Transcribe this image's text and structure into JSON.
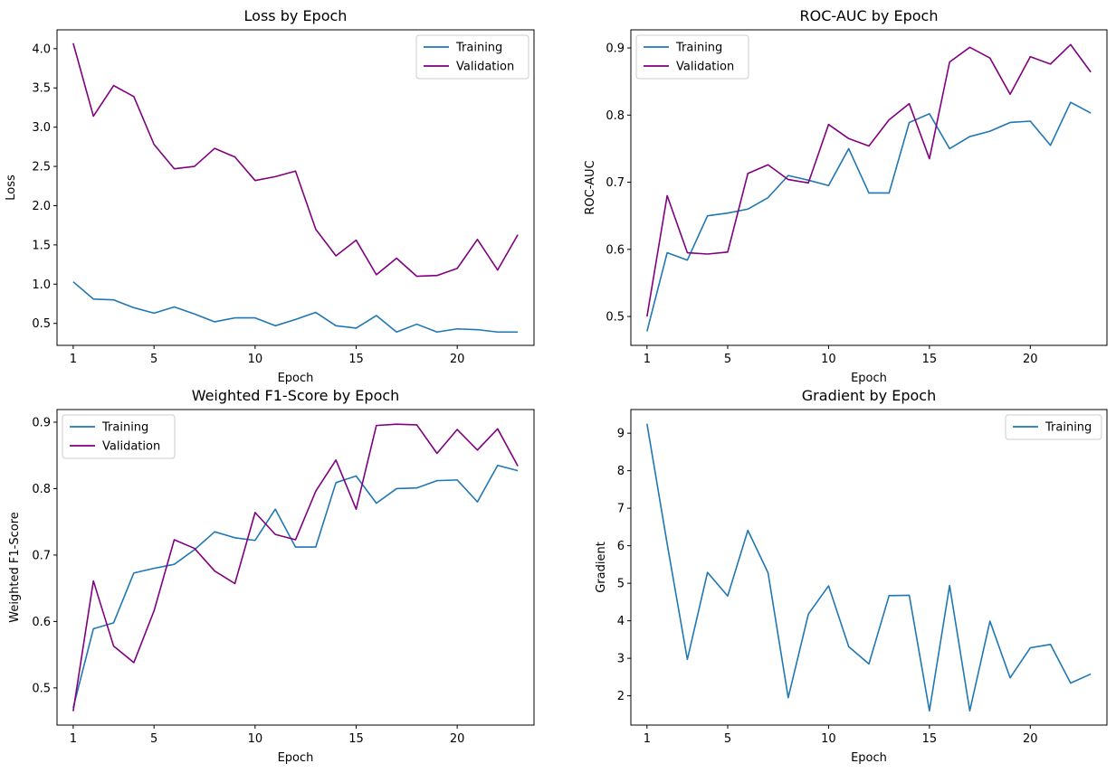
{
  "colors": {
    "training": "#1f77b4",
    "validation": "#800080"
  },
  "chart_data": [
    {
      "type": "line",
      "title": "Loss by Epoch",
      "xlabel": "Epoch",
      "ylabel": "Loss",
      "xlim": [
        0.2,
        23.8
      ],
      "ylim": [
        0.22,
        4.24
      ],
      "xticks": [
        1,
        5,
        10,
        15,
        20
      ],
      "yticks": [
        0.5,
        1.0,
        1.5,
        2.0,
        2.5,
        3.0,
        3.5,
        4.0
      ],
      "ytick_labels": [
        "0.5",
        "1.0",
        "1.5",
        "2.0",
        "2.5",
        "3.0",
        "3.5",
        "4.0"
      ],
      "legend": "top-right",
      "grid": false,
      "x": [
        1,
        2,
        3,
        4,
        5,
        6,
        7,
        8,
        9,
        10,
        11,
        12,
        13,
        14,
        15,
        16,
        17,
        18,
        19,
        20,
        21,
        22,
        23
      ],
      "series": [
        {
          "name": "Training",
          "color_key": "training",
          "values": [
            1.03,
            0.81,
            0.8,
            0.7,
            0.63,
            0.71,
            0.62,
            0.52,
            0.57,
            0.57,
            0.47,
            0.55,
            0.64,
            0.47,
            0.44,
            0.6,
            0.39,
            0.49,
            0.39,
            0.43,
            0.42,
            0.39,
            0.39
          ]
        },
        {
          "name": "Validation",
          "color_key": "validation",
          "values": [
            4.07,
            3.14,
            3.53,
            3.39,
            2.78,
            2.47,
            2.5,
            2.73,
            2.62,
            2.32,
            2.37,
            2.44,
            1.7,
            1.36,
            1.56,
            1.12,
            1.33,
            1.1,
            1.11,
            1.2,
            1.57,
            1.18,
            1.63
          ]
        }
      ]
    },
    {
      "type": "line",
      "title": "ROC-AUC by Epoch",
      "xlabel": "Epoch",
      "ylabel": "ROC-AUC",
      "xlim": [
        0.2,
        23.8
      ],
      "ylim": [
        0.457,
        0.927
      ],
      "xticks": [
        1,
        5,
        10,
        15,
        20
      ],
      "yticks": [
        0.5,
        0.6,
        0.7,
        0.8,
        0.9
      ],
      "ytick_labels": [
        "0.5",
        "0.6",
        "0.7",
        "0.8",
        "0.9"
      ],
      "legend": "top-left",
      "grid": false,
      "x": [
        1,
        2,
        3,
        4,
        5,
        6,
        7,
        8,
        9,
        10,
        11,
        12,
        13,
        14,
        15,
        16,
        17,
        18,
        19,
        20,
        21,
        22,
        23
      ],
      "series": [
        {
          "name": "Training",
          "color_key": "training",
          "values": [
            0.478,
            0.595,
            0.584,
            0.65,
            0.654,
            0.66,
            0.677,
            0.71,
            0.703,
            0.695,
            0.75,
            0.684,
            0.684,
            0.789,
            0.802,
            0.75,
            0.768,
            0.776,
            0.789,
            0.791,
            0.755,
            0.819,
            0.803
          ]
        },
        {
          "name": "Validation",
          "color_key": "validation",
          "values": [
            0.5,
            0.68,
            0.595,
            0.593,
            0.596,
            0.713,
            0.726,
            0.704,
            0.699,
            0.786,
            0.765,
            0.754,
            0.793,
            0.817,
            0.735,
            0.879,
            0.901,
            0.885,
            0.831,
            0.887,
            0.876,
            0.905,
            0.864
          ]
        }
      ]
    },
    {
      "type": "line",
      "title": "Weighted F1-Score by Epoch",
      "xlabel": "Epoch",
      "ylabel": "Weighted F1-Score",
      "xlim": [
        0.2,
        23.8
      ],
      "ylim": [
        0.444,
        0.919
      ],
      "xticks": [
        1,
        5,
        10,
        15,
        20
      ],
      "yticks": [
        0.5,
        0.6,
        0.7,
        0.8,
        0.9
      ],
      "ytick_labels": [
        "0.5",
        "0.6",
        "0.7",
        "0.8",
        "0.9"
      ],
      "legend": "top-left",
      "grid": false,
      "x": [
        1,
        2,
        3,
        4,
        5,
        6,
        7,
        8,
        9,
        10,
        11,
        12,
        13,
        14,
        15,
        16,
        17,
        18,
        19,
        20,
        21,
        22,
        23
      ],
      "series": [
        {
          "name": "Training",
          "color_key": "training",
          "values": [
            0.47,
            0.589,
            0.598,
            0.673,
            0.68,
            0.686,
            0.708,
            0.735,
            0.726,
            0.722,
            0.769,
            0.712,
            0.712,
            0.809,
            0.819,
            0.778,
            0.8,
            0.801,
            0.812,
            0.813,
            0.78,
            0.835,
            0.827
          ]
        },
        {
          "name": "Validation",
          "color_key": "validation",
          "values": [
            0.465,
            0.661,
            0.563,
            0.538,
            0.616,
            0.723,
            0.71,
            0.676,
            0.657,
            0.764,
            0.731,
            0.723,
            0.796,
            0.843,
            0.769,
            0.895,
            0.897,
            0.896,
            0.853,
            0.889,
            0.858,
            0.89,
            0.834
          ]
        }
      ]
    },
    {
      "type": "line",
      "title": "Gradient by Epoch",
      "xlabel": "Epoch",
      "ylabel": "Gradient",
      "xlim": [
        0.2,
        23.8
      ],
      "ylim": [
        1.22,
        9.63
      ],
      "xticks": [
        1,
        5,
        10,
        15,
        20
      ],
      "yticks": [
        2,
        3,
        4,
        5,
        6,
        7,
        8,
        9
      ],
      "ytick_labels": [
        "2",
        "3",
        "4",
        "5",
        "6",
        "7",
        "8",
        "9"
      ],
      "legend": "top-right",
      "grid": false,
      "x": [
        1,
        2,
        3,
        4,
        5,
        6,
        7,
        8,
        9,
        10,
        11,
        12,
        13,
        14,
        15,
        16,
        17,
        18,
        19,
        20,
        21,
        22,
        23
      ],
      "series": [
        {
          "name": "Training",
          "color_key": "training",
          "values": [
            9.25,
            6.05,
            2.97,
            5.29,
            4.66,
            6.41,
            5.28,
            1.95,
            4.18,
            4.93,
            3.31,
            2.85,
            4.67,
            4.68,
            1.6,
            4.94,
            1.6,
            3.99,
            2.48,
            3.28,
            3.37,
            2.34,
            2.58
          ]
        }
      ]
    }
  ]
}
